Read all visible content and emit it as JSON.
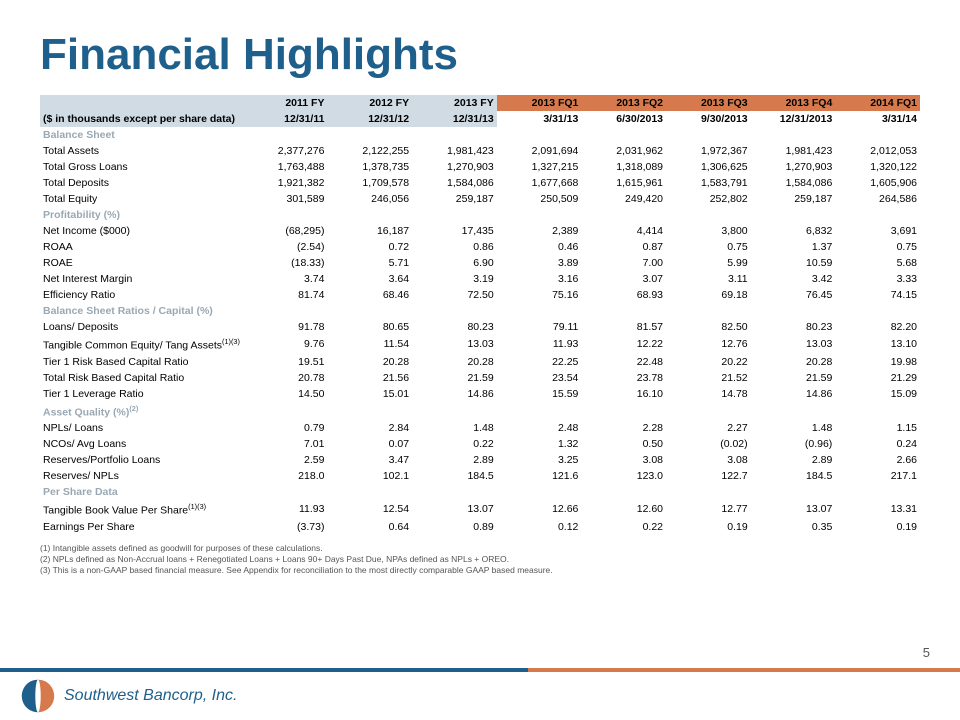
{
  "title": "Financial Highlights",
  "page_number": "5",
  "logo_text": "Southwest Bancorp, Inc.",
  "colors": {
    "title": "#1f5f8b",
    "header_year_bg": "#d0dbe3",
    "header_fq_bg": "#d67a4d",
    "section_text": "#9aa8b3",
    "rule_blue": "#1f5f8b",
    "rule_orange": "#d67a4d"
  },
  "table": {
    "subtitle": "($ in thousands except per share data)",
    "col_headers": [
      "2011 FY",
      "2012 FY",
      "2013 FY",
      "2013 FQ1",
      "2013 FQ2",
      "2013 FQ3",
      "2013 FQ4",
      "2014 FQ1"
    ],
    "col_is_fq": [
      false,
      false,
      false,
      true,
      true,
      true,
      true,
      true
    ],
    "col_dates": [
      "12/31/11",
      "12/31/12",
      "12/31/13",
      "3/31/13",
      "6/30/2013",
      "9/30/2013",
      "12/31/2013",
      "3/31/14"
    ],
    "sections": [
      {
        "title": "Balance Sheet",
        "rows": [
          {
            "label": "Total Assets",
            "vals": [
              "2,377,276",
              "2,122,255",
              "1,981,423",
              "2,091,694",
              "2,031,962",
              "1,972,367",
              "1,981,423",
              "2,012,053"
            ]
          },
          {
            "label": "Total Gross Loans",
            "vals": [
              "1,763,488",
              "1,378,735",
              "1,270,903",
              "1,327,215",
              "1,318,089",
              "1,306,625",
              "1,270,903",
              "1,320,122"
            ]
          },
          {
            "label": "Total Deposits",
            "vals": [
              "1,921,382",
              "1,709,578",
              "1,584,086",
              "1,677,668",
              "1,615,961",
              "1,583,791",
              "1,584,086",
              "1,605,906"
            ]
          },
          {
            "label": "Total Equity",
            "vals": [
              "301,589",
              "246,056",
              "259,187",
              "250,509",
              "249,420",
              "252,802",
              "259,187",
              "264,586"
            ]
          }
        ]
      },
      {
        "title": "Profitability (%)",
        "rows": [
          {
            "label": "Net Income ($000)",
            "vals": [
              "(68,295)",
              "16,187",
              "17,435",
              "2,389",
              "4,414",
              "3,800",
              "6,832",
              "3,691"
            ]
          },
          {
            "label": "ROAA",
            "vals": [
              "(2.54)",
              "0.72",
              "0.86",
              "0.46",
              "0.87",
              "0.75",
              "1.37",
              "0.75"
            ]
          },
          {
            "label": "ROAE",
            "vals": [
              "(18.33)",
              "5.71",
              "6.90",
              "3.89",
              "7.00",
              "5.99",
              "10.59",
              "5.68"
            ]
          },
          {
            "label": "Net Interest Margin",
            "vals": [
              "3.74",
              "3.64",
              "3.19",
              "3.16",
              "3.07",
              "3.11",
              "3.42",
              "3.33"
            ]
          },
          {
            "label": "Efficiency Ratio",
            "vals": [
              "81.74",
              "68.46",
              "72.50",
              "75.16",
              "68.93",
              "69.18",
              "76.45",
              "74.15"
            ]
          }
        ]
      },
      {
        "title": "Balance Sheet Ratios / Capital (%)",
        "rows": [
          {
            "label": "Loans/ Deposits",
            "vals": [
              "91.78",
              "80.65",
              "80.23",
              "79.11",
              "81.57",
              "82.50",
              "80.23",
              "82.20"
            ]
          },
          {
            "label": "Tangible Common Equity/ Tang Assets<sup>(1)(3)</sup>",
            "vals": [
              "9.76",
              "11.54",
              "13.03",
              "11.93",
              "12.22",
              "12.76",
              "13.03",
              "13.10"
            ]
          },
          {
            "label": "Tier 1 Risk Based Capital Ratio",
            "vals": [
              "19.51",
              "20.28",
              "20.28",
              "22.25",
              "22.48",
              "20.22",
              "20.28",
              "19.98"
            ]
          },
          {
            "label": "Total Risk Based Capital Ratio",
            "vals": [
              "20.78",
              "21.56",
              "21.59",
              "23.54",
              "23.78",
              "21.52",
              "21.59",
              "21.29"
            ]
          },
          {
            "label": "Tier 1 Leverage Ratio",
            "vals": [
              "14.50",
              "15.01",
              "14.86",
              "15.59",
              "16.10",
              "14.78",
              "14.86",
              "15.09"
            ]
          }
        ]
      },
      {
        "title": "Asset Quality (%)<sup>(2)</sup>",
        "rows": [
          {
            "label": "NPLs/ Loans",
            "vals": [
              "0.79",
              "2.84",
              "1.48",
              "2.48",
              "2.28",
              "2.27",
              "1.48",
              "1.15"
            ]
          },
          {
            "label": "NCOs/ Avg Loans",
            "vals": [
              "7.01",
              "0.07",
              "0.22",
              "1.32",
              "0.50",
              "(0.02)",
              "(0.96)",
              "0.24"
            ]
          },
          {
            "label": "Reserves/Portfolio Loans",
            "vals": [
              "2.59",
              "3.47",
              "2.89",
              "3.25",
              "3.08",
              "3.08",
              "2.89",
              "2.66"
            ]
          },
          {
            "label": "Reserves/ NPLs",
            "vals": [
              "218.0",
              "102.1",
              "184.5",
              "121.6",
              "123.0",
              "122.7",
              "184.5",
              "217.1"
            ]
          }
        ]
      },
      {
        "title": "Per Share Data",
        "rows": [
          {
            "label": "Tangible Book Value Per Share<sup>(1)(3)</sup>",
            "vals": [
              "11.93",
              "12.54",
              "13.07",
              "12.66",
              "12.60",
              "12.77",
              "13.07",
              "13.31"
            ]
          },
          {
            "label": "Earnings Per Share",
            "vals": [
              "(3.73)",
              "0.64",
              "0.89",
              "0.12",
              "0.22",
              "0.19",
              "0.35",
              "0.19"
            ]
          }
        ]
      }
    ]
  },
  "footnotes": [
    "(1)   Intangible assets defined as goodwill for purposes of these calculations.",
    "(2)   NPLs defined as Non-Accrual loans + Renegotiated Loans + Loans 90+ Days Past Due, NPAs defined as NPLs + OREO.",
    "(3)   This is a non-GAAP based financial measure.  See Appendix for reconciliation to the most directly comparable GAAP based measure."
  ]
}
